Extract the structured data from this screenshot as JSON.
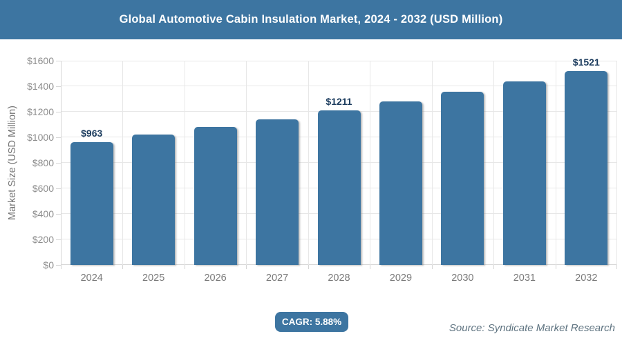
{
  "header": {
    "title": "Global Automotive Cabin Insulation Market, 2024 - 2032 (USD Million)"
  },
  "footer": {
    "cagr_label": "CAGR: 5.88%",
    "source": "Source: Syndicate Market Research"
  },
  "colors": {
    "header_bg": "#3D75A1",
    "bar": "#3D75A1",
    "bar_label": "#1C3C5E",
    "axis_text": "#8C8C8C",
    "gridline": "#E7E7E7",
    "axis_line": "#D6D6D6",
    "badge_bg": "#3D75A1",
    "source_text": "#5E7380"
  },
  "chart_data": {
    "type": "bar",
    "title": "Global Automotive Cabin Insulation Market, 2024 - 2032 (USD Million)",
    "categories": [
      "2024",
      "2025",
      "2026",
      "2027",
      "2028",
      "2029",
      "2030",
      "2031",
      "2032"
    ],
    "values": [
      963,
      1020,
      1080,
      1143,
      1211,
      1282,
      1357,
      1437,
      1521
    ],
    "bar_labels": [
      "$963",
      null,
      null,
      null,
      "$1211",
      null,
      null,
      null,
      "$1521"
    ],
    "xlabel": "",
    "ylabel": "Market Size (USD Million)",
    "ylim": [
      0,
      1600
    ],
    "ytick_step": 200,
    "ytick_labels": [
      "$0",
      "$200",
      "$400",
      "$600",
      "$800",
      "$1000",
      "$1200",
      "$1400",
      "$1600"
    ],
    "grid": true,
    "legend": false,
    "cagr": "5.88%"
  }
}
